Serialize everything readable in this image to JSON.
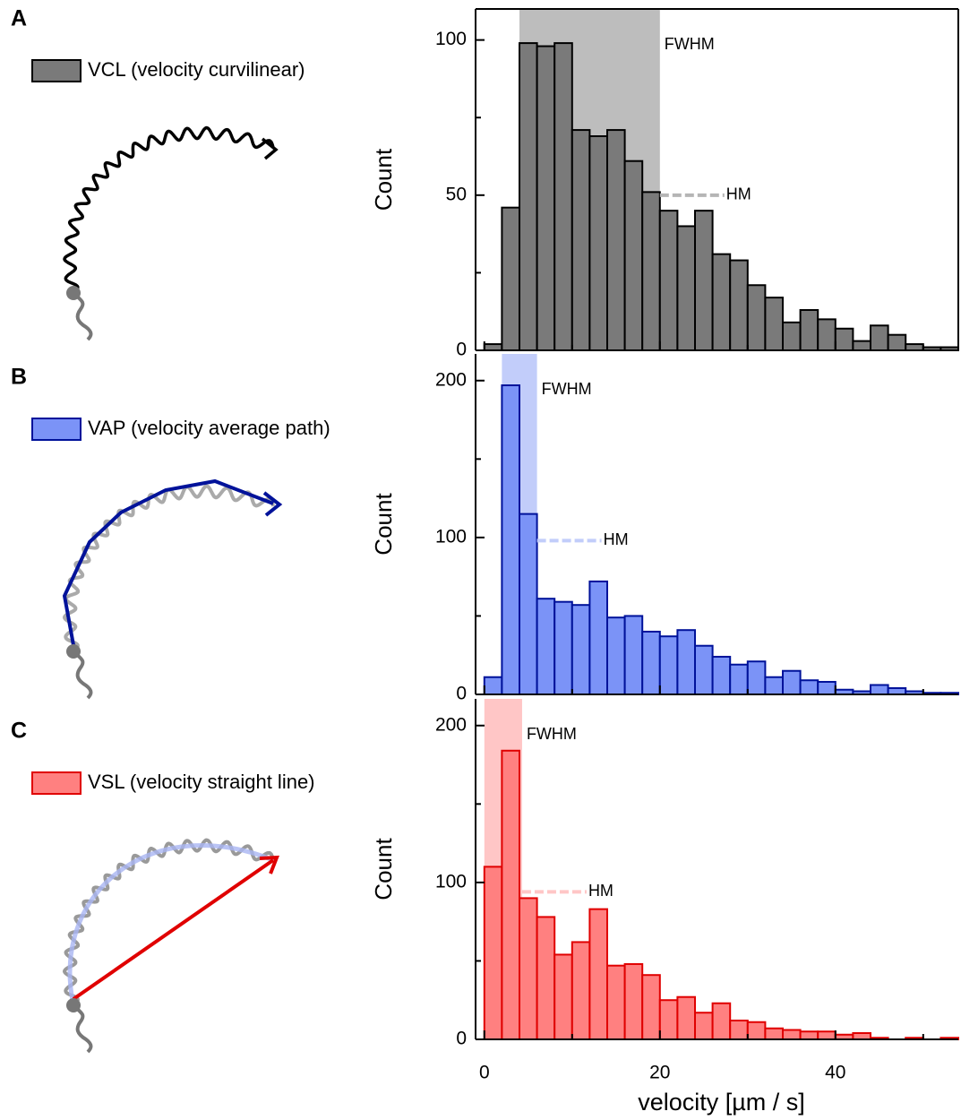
{
  "chart_data": [
    {
      "type": "histogram",
      "panel": "A",
      "ylabel": "Count",
      "series": [
        {
          "name": "VCL (velocity curvilinear)",
          "color": "#7a7a7a",
          "edgecolor": "#000000",
          "values": [
            2,
            46,
            99,
            98,
            99,
            71,
            69,
            71,
            61,
            51,
            45,
            40,
            45,
            31,
            29,
            21,
            17,
            9,
            13,
            10,
            7,
            3,
            8,
            5,
            2,
            1,
            1
          ]
        }
      ],
      "bins": [
        0,
        2,
        4,
        6,
        8,
        10,
        12,
        14,
        16,
        18,
        20,
        22,
        24,
        26,
        28,
        30,
        32,
        34,
        36,
        38,
        40,
        42,
        44,
        46,
        48,
        50,
        52,
        54
      ],
      "fwhm": [
        4,
        20
      ],
      "hm": 50,
      "fwhm_label": "FWHM",
      "hm_label": "HM",
      "shade_color": "#bdbdbd",
      "annotation_color": "#8c8c8c",
      "xlim": [
        -1,
        54
      ],
      "ylim": [
        0,
        110
      ],
      "xticks": [
        0,
        20,
        40
      ],
      "minor_xticks": [
        10,
        30,
        50
      ],
      "yticks": [
        0,
        50,
        100
      ],
      "minor_yticks": [
        25,
        75
      ],
      "show_xtick_labels": false,
      "frame": true
    },
    {
      "type": "histogram",
      "panel": "B",
      "ylabel": "Count",
      "series": [
        {
          "name": "VAP (velocity average path)",
          "color": "#7b93f7",
          "edgecolor": "#00129a",
          "values": [
            11,
            197,
            115,
            61,
            59,
            57,
            72,
            49,
            50,
            40,
            37,
            41,
            31,
            24,
            19,
            21,
            11,
            15,
            9,
            8,
            3,
            2,
            6,
            4,
            2,
            1,
            1
          ]
        }
      ],
      "bins": [
        0,
        2,
        4,
        6,
        8,
        10,
        12,
        14,
        16,
        18,
        20,
        22,
        24,
        26,
        28,
        30,
        32,
        34,
        36,
        38,
        40,
        42,
        44,
        46,
        48,
        50,
        52,
        54
      ],
      "fwhm": [
        2,
        6
      ],
      "hm": 98,
      "fwhm_label": "FWHM",
      "hm_label": "HM",
      "shade_color": "#c2cdfa",
      "annotation_color": "#8fa3f2",
      "xlim": [
        -1,
        54
      ],
      "ylim": [
        0,
        217
      ],
      "xticks": [
        0,
        20,
        40
      ],
      "minor_xticks": [
        10,
        30,
        50
      ],
      "yticks": [
        0,
        100,
        200
      ],
      "minor_yticks": [
        50,
        150
      ],
      "show_xtick_labels": false,
      "frame": false
    },
    {
      "type": "histogram",
      "panel": "C",
      "ylabel": "Count",
      "xlabel": "velocity [µm / s]",
      "series": [
        {
          "name": "VSL (velocity straight line)",
          "color": "#ff8080",
          "edgecolor": "#e00000",
          "values": [
            110,
            184,
            90,
            78,
            54,
            62,
            83,
            47,
            48,
            41,
            25,
            27,
            17,
            23,
            12,
            11,
            7,
            6,
            5,
            5,
            3,
            4,
            1,
            0,
            1,
            0,
            1
          ]
        }
      ],
      "bins": [
        0,
        2,
        4,
        6,
        8,
        10,
        12,
        14,
        16,
        18,
        20,
        22,
        24,
        26,
        28,
        30,
        32,
        34,
        36,
        38,
        40,
        42,
        44,
        46,
        48,
        50,
        52,
        54
      ],
      "fwhm": [
        0,
        4.3
      ],
      "hm": 94,
      "fwhm_label": "FWHM",
      "hm_label": "HM",
      "shade_color": "#ffc6c6",
      "annotation_color": "#f59a9a",
      "xlim": [
        -1,
        54
      ],
      "ylim": [
        0,
        217
      ],
      "xticks": [
        0,
        20,
        40
      ],
      "minor_xticks": [
        10,
        30,
        50
      ],
      "yticks": [
        0,
        100,
        200
      ],
      "minor_yticks": [
        50,
        150
      ],
      "show_xtick_labels": true,
      "frame": false
    }
  ]
}
